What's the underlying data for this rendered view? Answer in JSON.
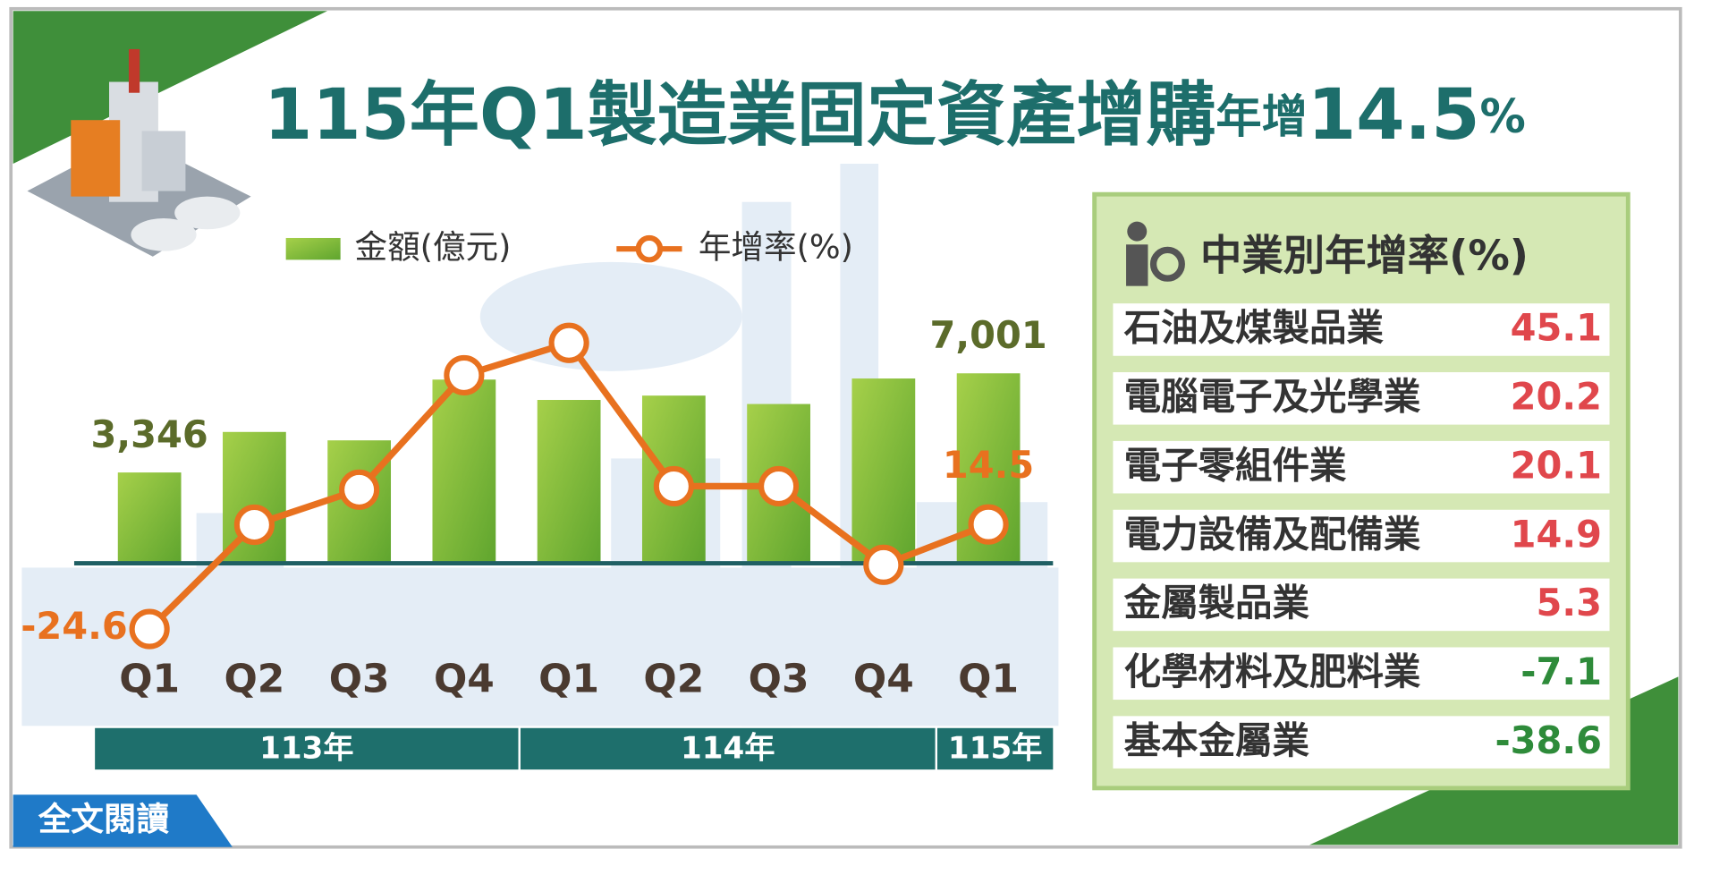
{
  "title_parts": [
    "115年Q1製造業固定資產增購",
    "年增",
    "14.5",
    "%"
  ],
  "chart_data": {
    "type": "bar-line",
    "categories": [
      "Q1",
      "Q2",
      "Q3",
      "Q4",
      "Q1",
      "Q2",
      "Q3",
      "Q4",
      "Q1"
    ],
    "year_groups": [
      "113年",
      "114年",
      "115年"
    ],
    "series": [
      {
        "name": "金額(億元)",
        "color": "#7dbb35",
        "values": [
          3346,
          4840,
          4530,
          6770,
          6020,
          6180,
          5870,
          6810,
          7001
        ],
        "value_labels": [
          "3,346",
          null,
          null,
          null,
          null,
          null,
          null,
          null,
          "7,001"
        ]
      },
      {
        "name": "年增率(%)",
        "color": "#e8711f",
        "values": [
          -24.6,
          14.4,
          27.5,
          70.3,
          82.4,
          28.8,
          28.8,
          -0.6,
          14.5
        ],
        "value_labels": [
          "-24.6",
          null,
          null,
          null,
          null,
          null,
          null,
          null,
          "14.5"
        ]
      }
    ]
  },
  "panel": {
    "title": "中業別年增率(%)",
    "rows": [
      [
        "石油及煤製品業",
        45.1
      ],
      [
        "電腦電子及光學業",
        20.2
      ],
      [
        "電子零組件業",
        20.1
      ],
      [
        "電力設備及配備業",
        14.9
      ],
      [
        "金屬製品業",
        5.3
      ],
      [
        "化學材料及肥料業",
        -7.1
      ],
      [
        "基本金屬業",
        -38.6
      ]
    ]
  },
  "button": "全文閱讀"
}
